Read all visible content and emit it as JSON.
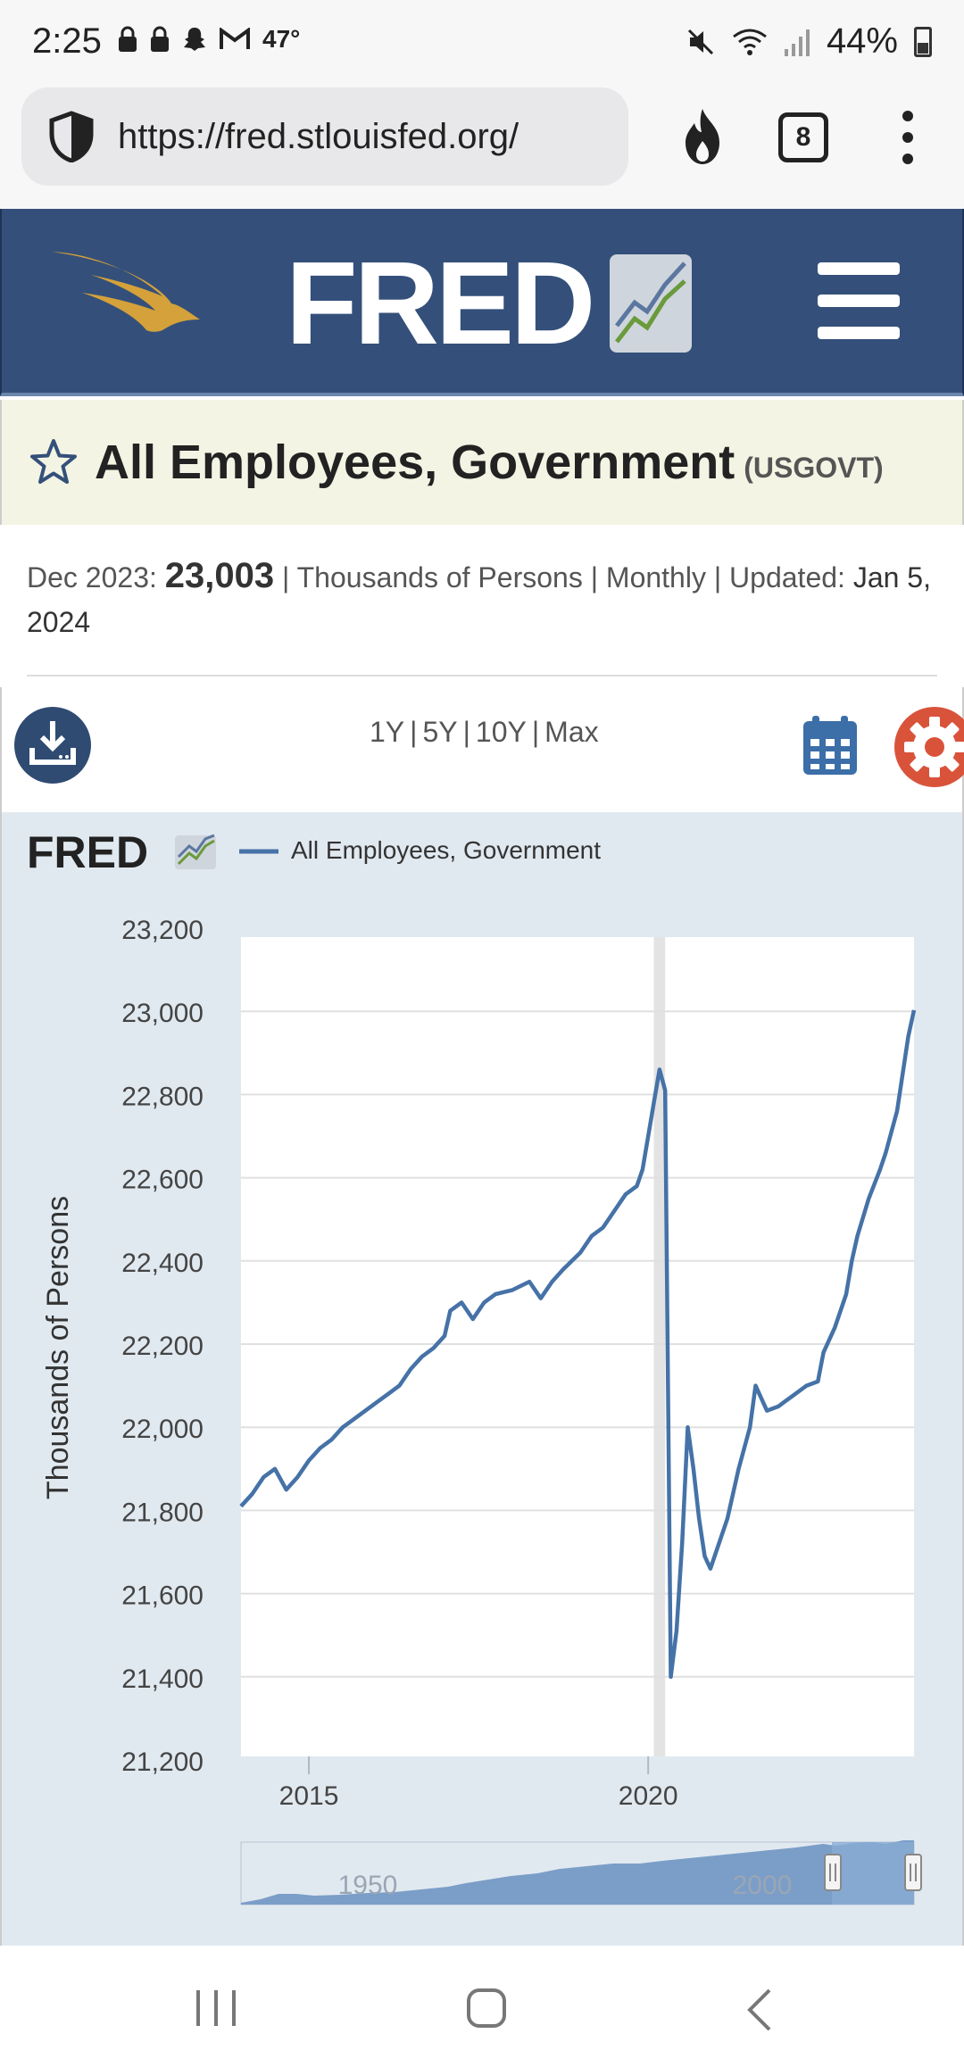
{
  "status_bar": {
    "time": "2:25",
    "temperature": "47°",
    "battery": "44%"
  },
  "browser": {
    "url": "https://fred.stlouisfed.org/",
    "tab_count": "8"
  },
  "header": {
    "logo_text": "FRED",
    "icons": [
      "eagle-icon",
      "fred-chart-icon",
      "hamburger-menu-icon"
    ]
  },
  "series": {
    "title": "All Employees, Government",
    "id": "(USGOVT)",
    "latest_period": "Dec 2023:",
    "latest_value": "23,003",
    "meta_rest": "| Thousands of Persons | Monthly | Updated:",
    "updated_date": "Jan 5, 2024"
  },
  "range": {
    "options": [
      "1Y",
      "5Y",
      "10Y",
      "Max"
    ]
  },
  "colors": {
    "header_bg": "#34507a",
    "series_line": "#4572a7",
    "chart_bg": "#e1e9f0",
    "title_bg": "#f3f4e3",
    "settings": "#d9533b",
    "eagle_gold": "#d4a13a"
  },
  "chart_data": {
    "type": "line",
    "legend_brand": "FRED",
    "legend_label": "All Employees, Government",
    "ylabel": "Thousands of Persons",
    "ylim": [
      21200,
      23200
    ],
    "yticks": [
      "21,200",
      "21,400",
      "21,600",
      "21,800",
      "22,000",
      "22,200",
      "22,400",
      "22,600",
      "22,800",
      "23,000",
      "23,200"
    ],
    "xlim": [
      2014.0,
      2023.917
    ],
    "xticks": [
      {
        "value": 2015,
        "label": "2015"
      },
      {
        "value": 2020,
        "label": "2020"
      }
    ],
    "recession_band": [
      2020.083,
      2020.25
    ],
    "series": [
      {
        "name": "All Employees, Government",
        "points": [
          [
            2014.0,
            21810
          ],
          [
            2014.167,
            21840
          ],
          [
            2014.333,
            21880
          ],
          [
            2014.5,
            21900
          ],
          [
            2014.667,
            21850
          ],
          [
            2014.833,
            21880
          ],
          [
            2015.0,
            21920
          ],
          [
            2015.167,
            21950
          ],
          [
            2015.333,
            21970
          ],
          [
            2015.5,
            22000
          ],
          [
            2015.667,
            22020
          ],
          [
            2015.833,
            22040
          ],
          [
            2016.0,
            22060
          ],
          [
            2016.167,
            22080
          ],
          [
            2016.333,
            22100
          ],
          [
            2016.5,
            22140
          ],
          [
            2016.667,
            22170
          ],
          [
            2016.833,
            22190
          ],
          [
            2017.0,
            22220
          ],
          [
            2017.083,
            22280
          ],
          [
            2017.25,
            22300
          ],
          [
            2017.417,
            22260
          ],
          [
            2017.583,
            22300
          ],
          [
            2017.75,
            22320
          ],
          [
            2018.0,
            22330
          ],
          [
            2018.25,
            22350
          ],
          [
            2018.417,
            22310
          ],
          [
            2018.583,
            22350
          ],
          [
            2018.75,
            22380
          ],
          [
            2019.0,
            22420
          ],
          [
            2019.167,
            22460
          ],
          [
            2019.333,
            22480
          ],
          [
            2019.5,
            22520
          ],
          [
            2019.667,
            22560
          ],
          [
            2019.833,
            22580
          ],
          [
            2019.917,
            22620
          ],
          [
            2020.0,
            22700
          ],
          [
            2020.083,
            22780
          ],
          [
            2020.167,
            22860
          ],
          [
            2020.25,
            22810
          ],
          [
            2020.333,
            21400
          ],
          [
            2020.417,
            21510
          ],
          [
            2020.5,
            21720
          ],
          [
            2020.583,
            22000
          ],
          [
            2020.667,
            21900
          ],
          [
            2020.75,
            21780
          ],
          [
            2020.833,
            21690
          ],
          [
            2020.917,
            21660
          ],
          [
            2021.0,
            21700
          ],
          [
            2021.167,
            21780
          ],
          [
            2021.333,
            21900
          ],
          [
            2021.5,
            22000
          ],
          [
            2021.583,
            22100
          ],
          [
            2021.75,
            22040
          ],
          [
            2021.917,
            22050
          ],
          [
            2022.0,
            22060
          ],
          [
            2022.167,
            22080
          ],
          [
            2022.333,
            22100
          ],
          [
            2022.5,
            22110
          ],
          [
            2022.583,
            22180
          ],
          [
            2022.75,
            22240
          ],
          [
            2022.917,
            22320
          ],
          [
            2023.0,
            22400
          ],
          [
            2023.083,
            22460
          ],
          [
            2023.25,
            22550
          ],
          [
            2023.417,
            22620
          ],
          [
            2023.5,
            22660
          ],
          [
            2023.667,
            22760
          ],
          [
            2023.833,
            22940
          ],
          [
            2023.917,
            23003
          ]
        ]
      }
    ],
    "navigator": {
      "labels": [
        "1950",
        "2000"
      ]
    }
  },
  "nav_bar": {
    "buttons": [
      "recents-button",
      "home-button",
      "back-button"
    ]
  }
}
